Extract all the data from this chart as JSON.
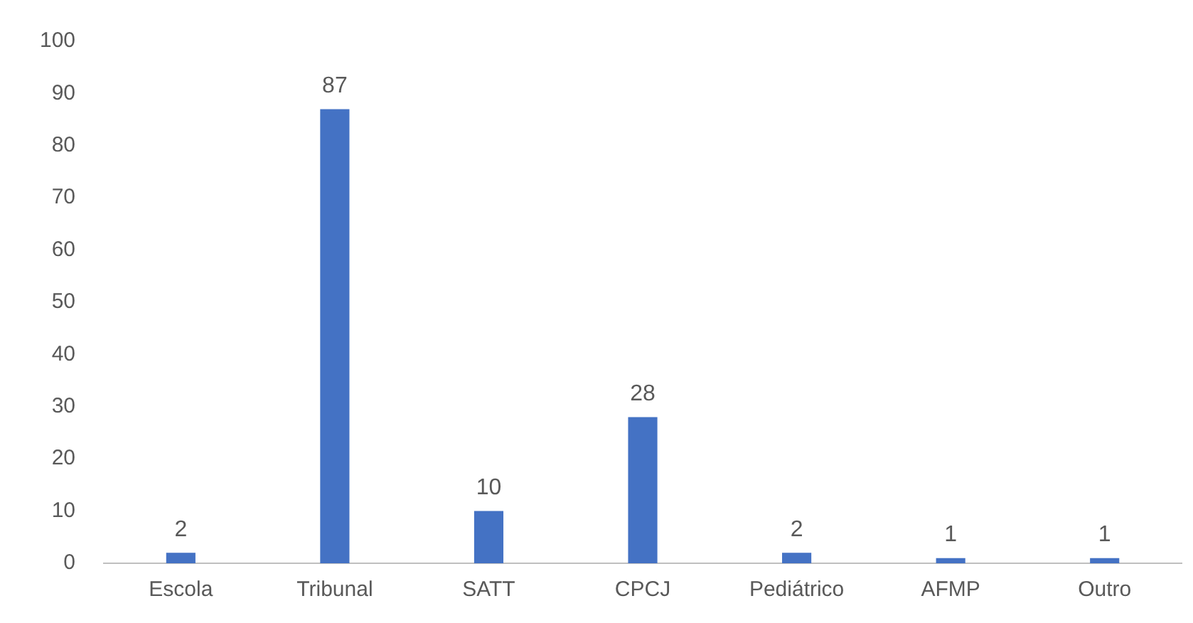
{
  "chart_data": {
    "type": "bar",
    "categories": [
      "Escola",
      "Tribunal",
      "SATT",
      "CPCJ",
      "Pediátrico",
      "AFMP",
      "Outro"
    ],
    "values": [
      2,
      87,
      10,
      28,
      2,
      1,
      1
    ],
    "color": "#4472c4",
    "ylim": [
      0,
      100
    ],
    "yticks": [
      0,
      10,
      20,
      30,
      40,
      50,
      60,
      70,
      80,
      90,
      100
    ],
    "grid": false,
    "legend": false,
    "data_labels": true
  }
}
